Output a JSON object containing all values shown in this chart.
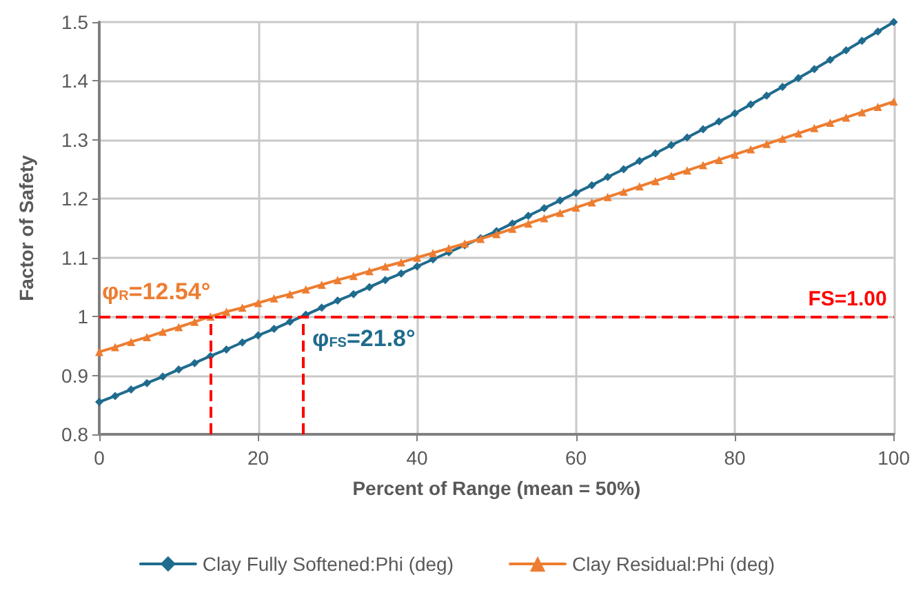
{
  "chart_data": {
    "type": "line",
    "xlabel": "Percent of Range (mean = 50%)",
    "ylabel": "Factor of Safety",
    "x": [
      0,
      2,
      4,
      6,
      8,
      10,
      12,
      14,
      16,
      18,
      20,
      22,
      24,
      26,
      28,
      30,
      32,
      34,
      36,
      38,
      40,
      42,
      44,
      46,
      48,
      50,
      52,
      54,
      56,
      58,
      60,
      62,
      64,
      66,
      68,
      70,
      72,
      74,
      76,
      78,
      80,
      82,
      84,
      86,
      88,
      90,
      92,
      94,
      96,
      98,
      100
    ],
    "series": [
      {
        "name": "Clay Fully Softened:Phi (deg)",
        "color": "#1f6b8e",
        "marker": "diamond",
        "values": [
          0.855,
          0.865,
          0.876,
          0.887,
          0.898,
          0.91,
          0.921,
          0.933,
          0.944,
          0.956,
          0.968,
          0.979,
          0.991,
          1.003,
          1.015,
          1.027,
          1.038,
          1.05,
          1.062,
          1.073,
          1.085,
          1.097,
          1.109,
          1.121,
          1.133,
          1.145,
          1.158,
          1.171,
          1.184,
          1.197,
          1.21,
          1.223,
          1.237,
          1.25,
          1.264,
          1.277,
          1.291,
          1.304,
          1.318,
          1.331,
          1.345,
          1.36,
          1.375,
          1.39,
          1.405,
          1.42,
          1.436,
          1.452,
          1.468,
          1.484,
          1.5
        ]
      },
      {
        "name": "Clay Residual:Phi (deg)",
        "color": "#ed7d31",
        "marker": "triangle",
        "values": [
          0.94,
          0.948,
          0.957,
          0.965,
          0.974,
          0.982,
          0.991,
          1.0,
          1.008,
          1.015,
          1.023,
          1.031,
          1.038,
          1.046,
          1.054,
          1.062,
          1.069,
          1.077,
          1.085,
          1.092,
          1.1,
          1.108,
          1.116,
          1.124,
          1.132,
          1.14,
          1.149,
          1.158,
          1.167,
          1.176,
          1.185,
          1.194,
          1.203,
          1.212,
          1.221,
          1.23,
          1.239,
          1.248,
          1.257,
          1.266,
          1.275,
          1.284,
          1.293,
          1.302,
          1.311,
          1.32,
          1.329,
          1.338,
          1.347,
          1.356,
          1.365
        ]
      }
    ],
    "xlim": [
      0,
      100
    ],
    "xticks": [
      0,
      20,
      40,
      60,
      80,
      100
    ],
    "ylim": [
      0.8,
      1.5
    ],
    "yticks": [
      0.8,
      0.9,
      1,
      1.1,
      1.2,
      1.3,
      1.4,
      1.5
    ],
    "ref_lines": [
      {
        "axis": "y",
        "value": 1,
        "label": "FS=1.00",
        "color": "#ff0000",
        "line_style": "dashed"
      },
      {
        "axis": "x",
        "value": 14,
        "color": "#ff0000",
        "line_style": "dashed"
      },
      {
        "axis": "x",
        "value": 25.6,
        "color": "#ff0000",
        "line_style": "dashed"
      }
    ],
    "annotations": [
      {
        "text": "φ$_{R}$=12.54°",
        "x": 14,
        "y": 1
      },
      {
        "text": "φ$_{FS}$=21.8°",
        "x": 25.6,
        "y": 1
      }
    ],
    "grid": true,
    "legend": "bottom",
    "line_style": "solid"
  }
}
